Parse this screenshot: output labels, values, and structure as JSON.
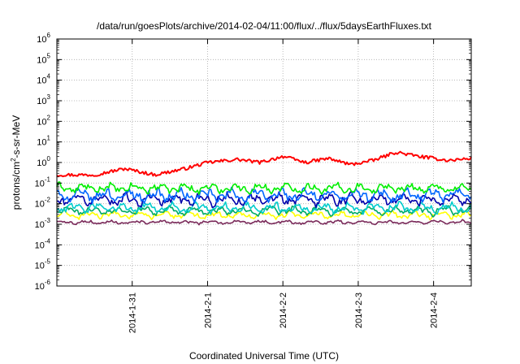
{
  "chart_data": {
    "type": "line",
    "title": "/data/run/goesPlots/archive/2014-02-04/11:00/flux/../flux/5daysEarthFluxes.txt",
    "xlabel": "Coordinated Universal Time (UTC)",
    "ylabel": {
      "base": "protons/cm",
      "exp": "2",
      "rest": "-s-sr-MeV"
    },
    "yscale": "log",
    "ylim_exp": [
      -6,
      6
    ],
    "y_ticks": [
      {
        "base": "10",
        "exp": "6"
      },
      {
        "base": "10",
        "exp": "5"
      },
      {
        "base": "10",
        "exp": "4"
      },
      {
        "base": "10",
        "exp": "3"
      },
      {
        "base": "10",
        "exp": "2"
      },
      {
        "base": "10",
        "exp": "1"
      },
      {
        "base": "10",
        "exp": "0"
      },
      {
        "base": "10",
        "exp": "-1"
      },
      {
        "base": "10",
        "exp": "-2"
      },
      {
        "base": "10",
        "exp": "-3"
      },
      {
        "base": "10",
        "exp": "-4"
      },
      {
        "base": "10",
        "exp": "-5"
      },
      {
        "base": "10",
        "exp": "-6"
      }
    ],
    "x_ticks": [
      "2014-1-31",
      "2014-2-1",
      "2014-2-2",
      "2014-2-3",
      "2014-2-4"
    ],
    "x_range_days": [
      -1.0,
      4.5
    ],
    "grid": true,
    "series": [
      {
        "color": "#ff0000",
        "mid": 0.15,
        "amp": 0.25,
        "noise": 0.08,
        "anchors": [
          [
            -1.0,
            -0.6
          ],
          [
            -0.5,
            -0.6
          ],
          [
            -0.1,
            -0.3
          ],
          [
            0.3,
            -0.6
          ],
          [
            0.7,
            -0.3
          ],
          [
            1.0,
            0.0
          ],
          [
            1.4,
            0.15
          ],
          [
            1.7,
            0.0
          ],
          [
            2.0,
            0.3
          ],
          [
            2.3,
            0.0
          ],
          [
            2.6,
            0.2
          ],
          [
            2.9,
            -0.1
          ],
          [
            3.2,
            0.1
          ],
          [
            3.5,
            0.5
          ],
          [
            3.8,
            0.3
          ],
          [
            4.2,
            0.1
          ],
          [
            4.5,
            0.2
          ]
        ]
      },
      {
        "color": "#00ee00",
        "mid": -1.25,
        "amp": 0.25,
        "noise": 0.12,
        "anchors": []
      },
      {
        "color": "#0066ff",
        "mid": -1.6,
        "amp": 0.35,
        "noise": 0.15,
        "anchors": []
      },
      {
        "color": "#0000aa",
        "mid": -1.8,
        "amp": 0.35,
        "noise": 0.15,
        "anchors": []
      },
      {
        "color": "#00cccc",
        "mid": -2.2,
        "amp": 0.3,
        "noise": 0.12,
        "anchors": []
      },
      {
        "color": "#00aa66",
        "mid": -2.35,
        "amp": 0.25,
        "noise": 0.1,
        "anchors": []
      },
      {
        "color": "#ffff00",
        "mid": -2.55,
        "amp": 0.2,
        "noise": 0.08,
        "anchors": []
      },
      {
        "color": "#7a2a5a",
        "mid": -2.9,
        "amp": 0.1,
        "noise": 0.05,
        "anchors": []
      }
    ]
  }
}
